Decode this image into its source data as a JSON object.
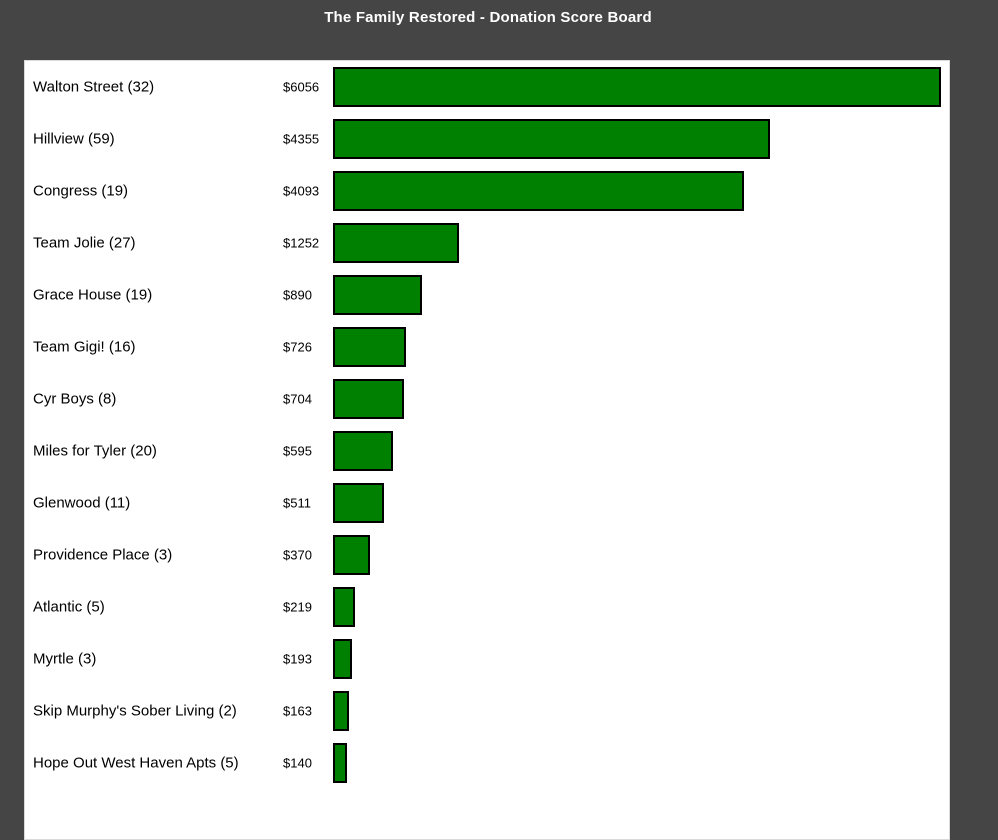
{
  "page": {
    "background_color": "#454545",
    "panel_color": "#ffffff",
    "title_color": "#ffffff",
    "text_color": "#000000"
  },
  "chart_data": {
    "type": "bar",
    "orientation": "horizontal",
    "title": "The Family Restored - Donation Score Board",
    "xlabel": "",
    "ylabel": "",
    "xlim": [
      0,
      6056
    ],
    "grid": false,
    "legend": "none",
    "bar_color": "#008000",
    "bar_border_color": "#000000",
    "categories": [
      "Walton Street (32)",
      "Hillview (59)",
      "Congress (19)",
      "Team Jolie (27)",
      "Grace House (19)",
      "Team Gigi! (16)",
      "Cyr Boys (8)",
      "Miles for Tyler (20)",
      "Glenwood (11)",
      "Providence Place (3)",
      "Atlantic (5)",
      "Myrtle (3)",
      "Skip Murphy's Sober Living (2)",
      "Hope Out West Haven Apts (5)"
    ],
    "values": [
      6056,
      4355,
      4093,
      1252,
      890,
      726,
      704,
      595,
      511,
      370,
      219,
      193,
      163,
      140
    ],
    "value_labels": [
      "$6056",
      "$4355",
      "$4093",
      "$1252",
      "$890",
      "$726",
      "$704",
      "$595",
      "$511",
      "$370",
      "$219",
      "$193",
      "$163",
      "$140"
    ]
  }
}
